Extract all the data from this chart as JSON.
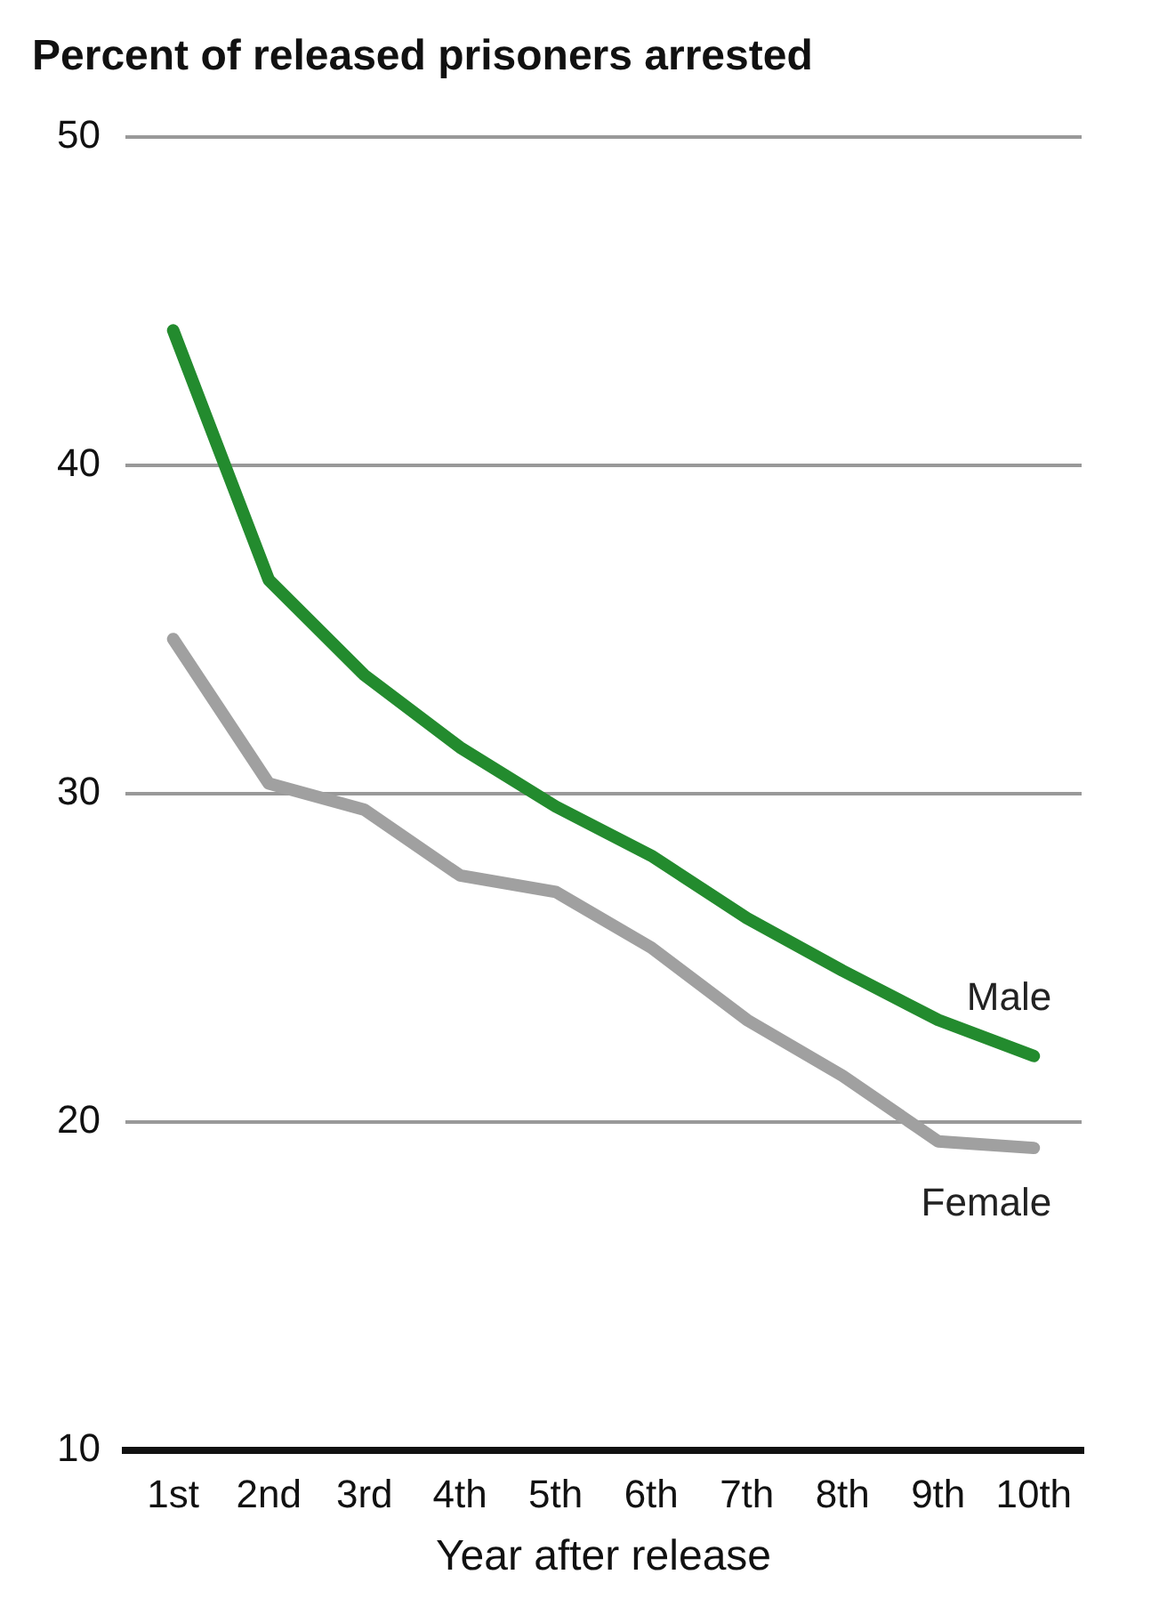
{
  "chart_data": {
    "type": "line",
    "title": "Percent of released prisoners arrested",
    "xlabel": "Year after release",
    "categories": [
      "1st",
      "2nd",
      "3rd",
      "4th",
      "5th",
      "6th",
      "7th",
      "8th",
      "9th",
      "10th"
    ],
    "series": [
      {
        "name": "Male",
        "color": "#238b2e",
        "values": [
          44.1,
          36.5,
          33.6,
          31.4,
          29.6,
          28.1,
          26.2,
          24.6,
          23.1,
          22.0
        ]
      },
      {
        "name": "Female",
        "color": "#a0a0a0",
        "values": [
          34.7,
          30.3,
          29.5,
          27.5,
          27.0,
          25.3,
          23.1,
          21.4,
          19.4,
          19.2
        ]
      }
    ],
    "ylim": [
      10,
      50
    ],
    "yticks": [
      10,
      20,
      30,
      40,
      50
    ],
    "grid": "y",
    "legend": false,
    "marker": "none",
    "line_style": "solid"
  }
}
